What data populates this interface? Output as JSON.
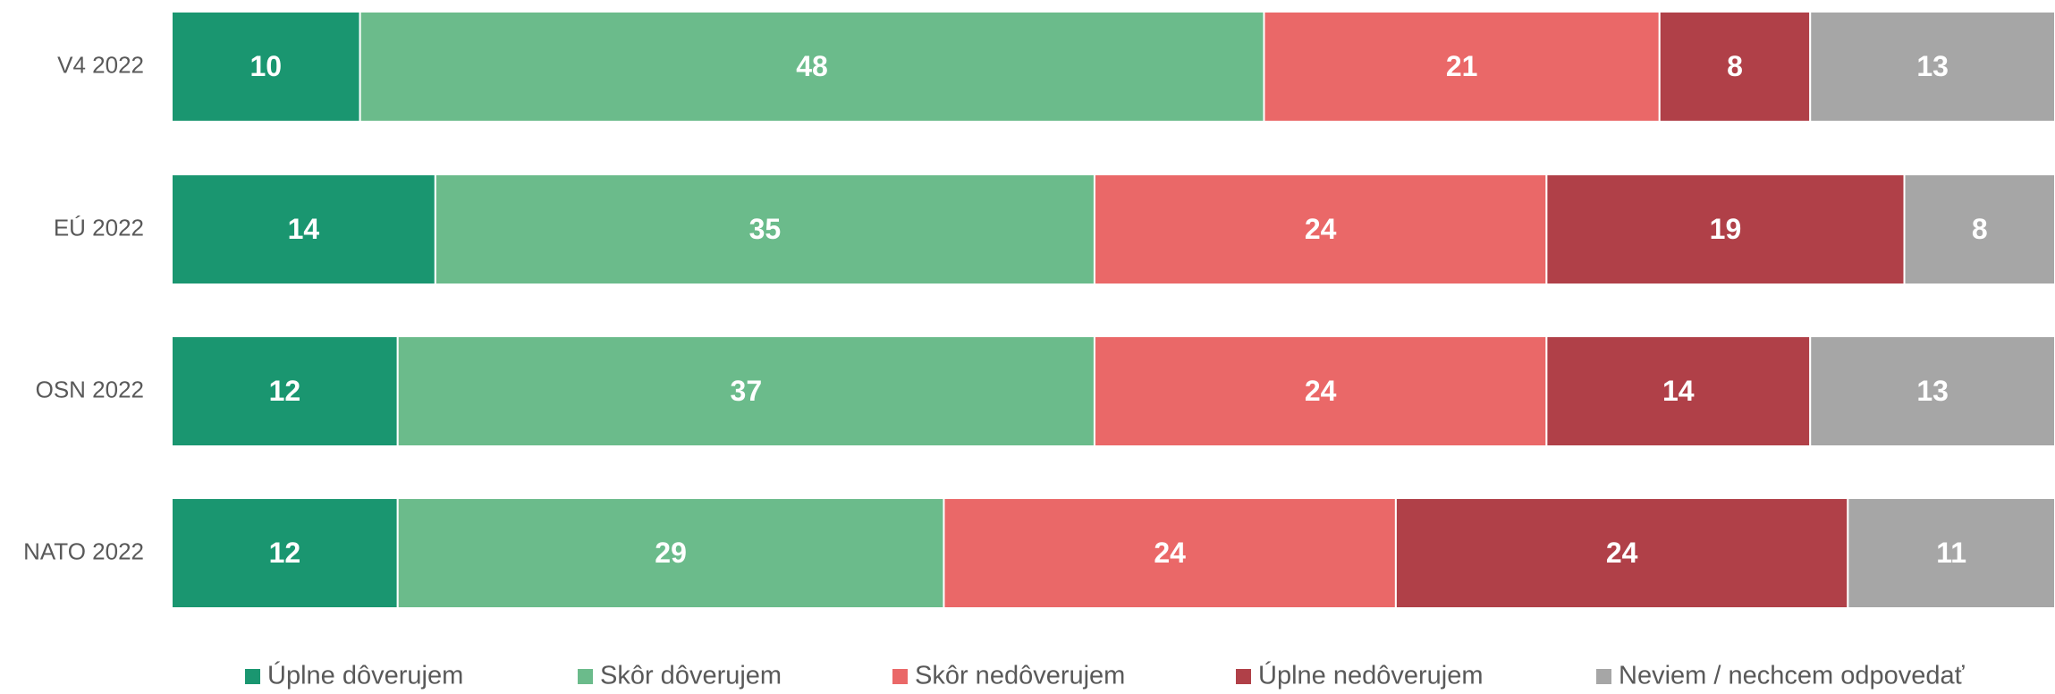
{
  "chart_data": {
    "type": "stacked_bar_horizontal",
    "categories": [
      "V4 2022",
      "EÚ 2022",
      "OSN 2022",
      "NATO 2022"
    ],
    "series": [
      {
        "name": "Úplne dôverujem",
        "color": "#1a9670",
        "values": [
          10,
          14,
          12,
          12
        ]
      },
      {
        "name": "Skôr dôverujem",
        "color": "#6bbb8b",
        "values": [
          48,
          35,
          37,
          29
        ]
      },
      {
        "name": "Skôr nedôverujem",
        "color": "#ea6868",
        "values": [
          21,
          24,
          24,
          24
        ]
      },
      {
        "name": "Úplne nedôverujem",
        "color": "#b04048",
        "values": [
          8,
          19,
          14,
          24
        ]
      },
      {
        "name": "Neviem / nechcem odpovedať",
        "color": "#a6a6a6",
        "values": [
          13,
          8,
          13,
          11
        ]
      }
    ],
    "xlim": [
      0,
      100
    ],
    "legend": "bottom"
  }
}
